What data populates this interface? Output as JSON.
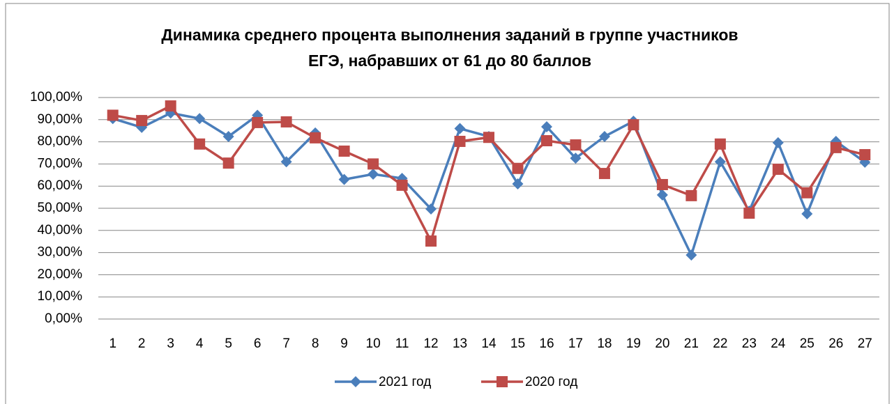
{
  "chart_data": {
    "type": "line",
    "title": "Динамика среднего процента выполнения заданий в группе участников",
    "subtitle": "ЕГЭ, набравших от 61 до 80 баллов",
    "categories": [
      "1",
      "2",
      "3",
      "4",
      "5",
      "6",
      "7",
      "8",
      "9",
      "10",
      "11",
      "12",
      "13",
      "14",
      "15",
      "16",
      "17",
      "18",
      "19",
      "20",
      "21",
      "22",
      "23",
      "24",
      "25",
      "26",
      "27"
    ],
    "series": [
      {
        "name": "2021 год",
        "color": "#4a7ebb",
        "marker": "diamond",
        "values": [
          90.5,
          86.5,
          93,
          90.5,
          82.4,
          92,
          71,
          84,
          63,
          65.4,
          63.5,
          49.7,
          86,
          82.4,
          61,
          86.8,
          72.6,
          82.4,
          89.3,
          56,
          28.9,
          71,
          48.7,
          79.6,
          47.5,
          80.2,
          70.8
        ]
      },
      {
        "name": "2020 год",
        "color": "#be4b48",
        "marker": "square",
        "values": [
          92,
          89.6,
          96.2,
          79,
          70.4,
          88.7,
          89,
          81.8,
          75.8,
          70,
          60.4,
          35.2,
          80.2,
          82,
          68,
          80.5,
          78.6,
          65.7,
          87.7,
          60.7,
          55.7,
          79,
          47.8,
          67.6,
          57,
          77.4,
          74.2
        ]
      }
    ],
    "ylim": [
      0,
      100
    ],
    "yticks": [
      {
        "value": 0,
        "label": "0,00%"
      },
      {
        "value": 10,
        "label": "10,00%"
      },
      {
        "value": 20,
        "label": "20,00%"
      },
      {
        "value": 30,
        "label": "30,00%"
      },
      {
        "value": 40,
        "label": "40,00%"
      },
      {
        "value": 50,
        "label": "50,00%"
      },
      {
        "value": 60,
        "label": "60,00%"
      },
      {
        "value": 70,
        "label": "70,00%"
      },
      {
        "value": 80,
        "label": "80,00%"
      },
      {
        "value": 90,
        "label": "90,00%"
      },
      {
        "value": 100,
        "label": "100,00%"
      }
    ],
    "grid": true,
    "legend": "bottom"
  }
}
